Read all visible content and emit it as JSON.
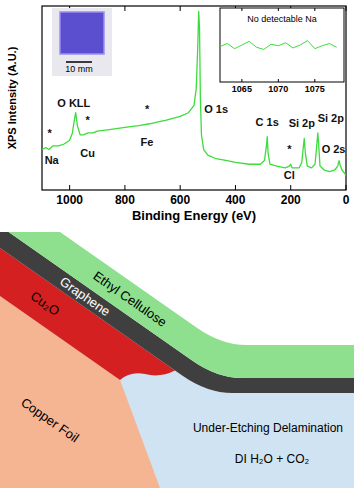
{
  "chart_data": [
    {
      "type": "line",
      "x_label": "Binding Energy (eV)",
      "y_label": "XPS Intensity (A.U.)",
      "color": "#3ddc3d",
      "xlim": [
        1100,
        0
      ],
      "xticks": [
        1000,
        800,
        600,
        400,
        200,
        0
      ],
      "ylim": [
        0,
        100
      ],
      "tick_labels": "x",
      "x": [
        1100,
        1085,
        1075,
        1060,
        1040,
        1020,
        1000,
        990,
        983,
        978,
        972,
        962,
        950,
        933,
        915,
        900,
        850,
        800,
        750,
        710,
        680,
        650,
        600,
        570,
        550,
        542,
        537,
        533,
        530,
        527,
        523,
        515,
        500,
        470,
        430,
        400,
        350,
        310,
        295,
        288,
        285,
        282,
        275,
        250,
        220,
        205,
        200,
        195,
        170,
        160,
        154,
        151,
        147,
        140,
        125,
        112,
        106,
        102,
        99,
        94,
        80,
        60,
        40,
        30,
        25,
        22,
        15,
        5,
        0
      ],
      "values": [
        22,
        23,
        22,
        24,
        24,
        25,
        27,
        31,
        38,
        42,
        35,
        30,
        30,
        31,
        31,
        32,
        33,
        34,
        35,
        36,
        37,
        38,
        40,
        42,
        46,
        55,
        75,
        97,
        88,
        50,
        30,
        22,
        19,
        17,
        16,
        15,
        14,
        14,
        16,
        24,
        29,
        20,
        14,
        13,
        12,
        13,
        14,
        12,
        12,
        15,
        24,
        28,
        20,
        13,
        12,
        14,
        24,
        31,
        25,
        13,
        11,
        10,
        11,
        13,
        16,
        14,
        11,
        9,
        8
      ],
      "annotations": [
        {
          "text": "O KLL",
          "x": 985,
          "y": 45
        },
        {
          "text": "O 1s",
          "x": 470,
          "y": 42
        },
        {
          "text": "C 1s",
          "x": 285,
          "y": 35
        },
        {
          "text": "Si 2p",
          "x": 160,
          "y": 34
        },
        {
          "text": "Si 2p",
          "x": 55,
          "y": 37
        },
        {
          "text": "O 2s",
          "x": 45,
          "y": 20
        },
        {
          "text": "*",
          "x": 1072,
          "y": 29
        },
        {
          "text": "Na",
          "x": 1065,
          "y": 14
        },
        {
          "text": "*",
          "x": 935,
          "y": 36
        },
        {
          "text": "Cu",
          "x": 935,
          "y": 18
        },
        {
          "text": "*",
          "x": 720,
          "y": 42
        },
        {
          "text": "Fe",
          "x": 720,
          "y": 24
        },
        {
          "text": "*",
          "x": 205,
          "y": 20
        },
        {
          "text": "Cl",
          "x": 205,
          "y": 6
        }
      ]
    },
    {
      "type": "line",
      "title": "No detectable Na",
      "color": "#3ddc3d",
      "xlim": [
        1062,
        1079
      ],
      "xticks": [
        1065,
        1070,
        1075
      ],
      "ylim": [
        0,
        100
      ],
      "tick_labels": "x",
      "x": [
        1062,
        1063,
        1064,
        1065,
        1066,
        1067,
        1068,
        1069,
        1070,
        1071,
        1072,
        1073,
        1074,
        1075,
        1076,
        1077,
        1078
      ],
      "values": [
        48,
        52,
        45,
        50,
        55,
        47,
        44,
        51,
        49,
        53,
        46,
        50,
        56,
        45,
        49,
        52,
        47
      ]
    }
  ],
  "photo_inset": {
    "scale_bar": "10 mm"
  },
  "diagram": {
    "layers": [
      {
        "label": "Ethyl Cellulose"
      },
      {
        "label": "Graphene"
      },
      {
        "label": "Cu₂O"
      },
      {
        "label": "Copper Foil"
      }
    ],
    "regions": [
      {
        "label": "Under-Etching Delamination"
      },
      {
        "label": "DI H₂O + CO₂"
      }
    ]
  }
}
